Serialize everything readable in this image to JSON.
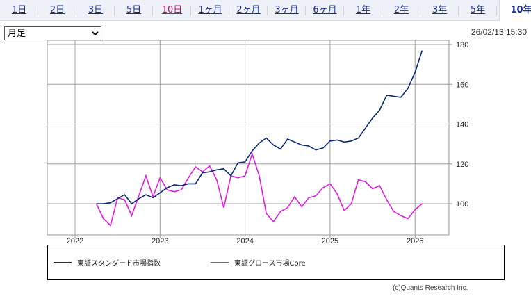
{
  "tabs": [
    {
      "label": "1日"
    },
    {
      "label": "2日"
    },
    {
      "label": "3日"
    },
    {
      "label": "5日"
    },
    {
      "label": "10日"
    },
    {
      "label": "1ヶ月"
    },
    {
      "label": "2ヶ月"
    },
    {
      "label": "3ヶ月"
    },
    {
      "label": "6ヶ月"
    },
    {
      "label": "1年"
    },
    {
      "label": "2年"
    },
    {
      "label": "3年"
    },
    {
      "label": "5年"
    },
    {
      "label": "10年"
    }
  ],
  "active_tab": "10年",
  "period_select": {
    "value": "月足"
  },
  "timestamp": "26/02/13 15:30",
  "copyright": "(c)Quants Research Inc.",
  "colors": {
    "standard": "#0a2a78",
    "growth": "#e619e6",
    "visited_tab": "#c8106b"
  },
  "chart_data": {
    "type": "line",
    "title": "",
    "xlabel": "",
    "ylabel": "",
    "x_start": "2022-04",
    "x_step": "month",
    "x_ticks": [
      "2022",
      "2023",
      "2024",
      "2025",
      "2026"
    ],
    "y_ticks": [
      "100",
      "120",
      "140",
      "160",
      "180"
    ],
    "ylim": [
      84,
      182
    ],
    "grid": true,
    "legend_position": "bottom",
    "series": [
      {
        "name": "東証スタンダード市場指数",
        "color": "#0a2a78",
        "values": [
          100,
          100,
          100.5,
          102.5,
          104.5,
          100,
          102.5,
          104.5,
          103,
          105.5,
          108,
          109.5,
          109,
          110,
          110,
          115.5,
          116,
          117,
          117.5,
          114,
          120.5,
          121,
          126.5,
          130.5,
          133,
          129.5,
          127.5,
          132.5,
          131,
          129.5,
          129,
          127,
          128,
          131.5,
          132,
          131,
          131.5,
          133,
          138,
          143,
          147,
          154.5,
          154,
          153.5,
          158,
          166,
          177
        ]
      },
      {
        "name": "東証グロース市場Core",
        "color": "#e619e6",
        "values": [
          100,
          92.5,
          89,
          103,
          102,
          94,
          104,
          114,
          103.5,
          113,
          107,
          106,
          107,
          113,
          118.5,
          116,
          119,
          112,
          98,
          114,
          113,
          114,
          125,
          114,
          95,
          91,
          96,
          98,
          103.5,
          98.5,
          103,
          104,
          108,
          110,
          105,
          96.5,
          100,
          112,
          111,
          107.5,
          109,
          102,
          96,
          94,
          92.5,
          97,
          100
        ]
      }
    ]
  }
}
